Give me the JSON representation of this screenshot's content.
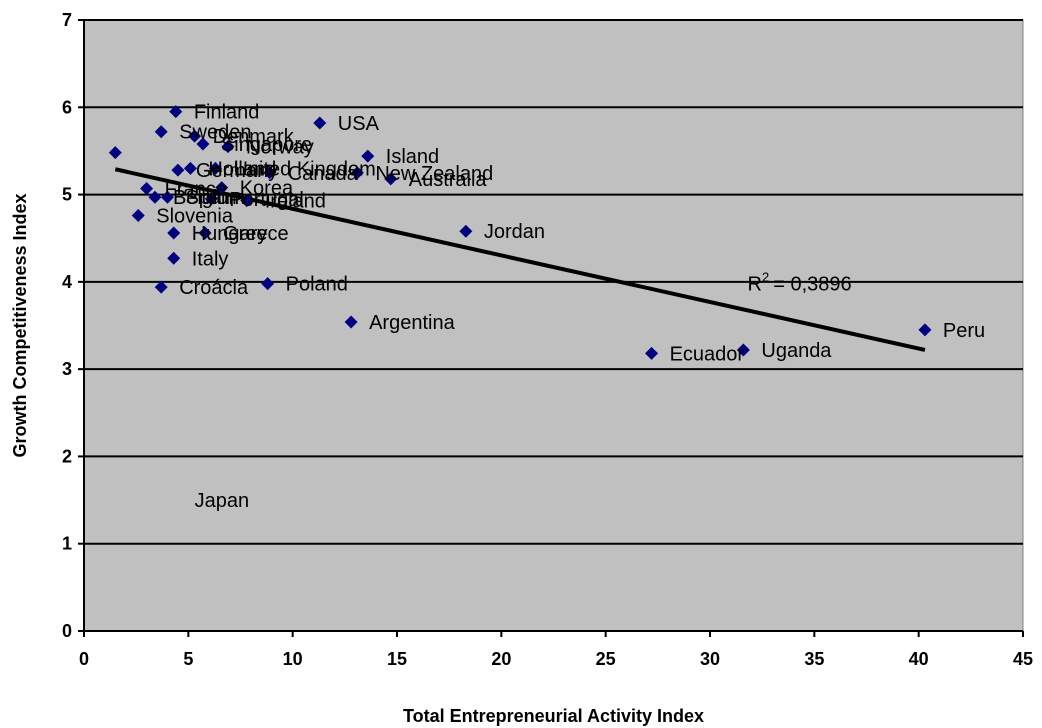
{
  "chart_data": {
    "type": "scatter",
    "title": "",
    "xlabel": "Total Entrepreneurial Activity Index",
    "ylabel": "Growth Competitiveness Index",
    "xlim": [
      0,
      45
    ],
    "ylim": [
      0,
      7
    ],
    "xticks": [
      "0",
      "5",
      "10",
      "15",
      "20",
      "25",
      "30",
      "35",
      "40",
      "45"
    ],
    "yticks": [
      "0",
      "1",
      "2",
      "3",
      "4",
      "5",
      "6",
      "7"
    ],
    "grid": "horizontal",
    "legend": "none",
    "marker_color": "#000080",
    "plot_background": "#c0c0c0",
    "points": [
      {
        "x": 4.4,
        "y": 5.95,
        "label": "Finland"
      },
      {
        "x": 3.7,
        "y": 5.72,
        "label": "Sweden"
      },
      {
        "x": 5.3,
        "y": 5.67,
        "label": "Denmark"
      },
      {
        "x": 5.7,
        "y": 5.58,
        "label": "Singapore"
      },
      {
        "x": 6.9,
        "y": 5.55,
        "label": "Norway"
      },
      {
        "x": 11.3,
        "y": 5.82,
        "label": "USA"
      },
      {
        "x": 13.6,
        "y": 5.44,
        "label": "Island"
      },
      {
        "x": 1.5,
        "y": 5.48,
        "label": ""
      },
      {
        "x": 4.5,
        "y": 5.28,
        "label": "Germany"
      },
      {
        "x": 5.1,
        "y": 5.3,
        "label": "Holland"
      },
      {
        "x": 6.3,
        "y": 5.3,
        "label": "United Kingdom"
      },
      {
        "x": 8.9,
        "y": 5.25,
        "label": "Canada"
      },
      {
        "x": 13.1,
        "y": 5.25,
        "label": "New Zealand"
      },
      {
        "x": 14.7,
        "y": 5.18,
        "label": "Australia"
      },
      {
        "x": 3.0,
        "y": 5.07,
        "label": "France"
      },
      {
        "x": 6.6,
        "y": 5.08,
        "label": "Korea"
      },
      {
        "x": 3.4,
        "y": 4.97,
        "label": "Belgium"
      },
      {
        "x": 4.0,
        "y": 4.97,
        "label": "Spain"
      },
      {
        "x": 6.1,
        "y": 4.95,
        "label": "Portugal"
      },
      {
        "x": 7.8,
        "y": 4.93,
        "label": "Ireland"
      },
      {
        "x": 2.6,
        "y": 4.76,
        "label": "Slovenia"
      },
      {
        "x": 4.3,
        "y": 4.56,
        "label": "Hungary"
      },
      {
        "x": 5.8,
        "y": 4.56,
        "label": "Greece"
      },
      {
        "x": 18.3,
        "y": 4.58,
        "label": "Jordan"
      },
      {
        "x": 4.3,
        "y": 4.27,
        "label": "Italy"
      },
      {
        "x": 3.7,
        "y": 3.94,
        "label": "Croácia"
      },
      {
        "x": 8.8,
        "y": 3.98,
        "label": "Poland"
      },
      {
        "x": 12.8,
        "y": 3.54,
        "label": "Argentina"
      },
      {
        "x": 27.2,
        "y": 3.18,
        "label": "Ecuador"
      },
      {
        "x": 31.6,
        "y": 3.22,
        "label": "Uganda"
      },
      {
        "x": 40.3,
        "y": 3.45,
        "label": "Peru"
      }
    ],
    "stray_labels": [
      {
        "text": "Japan",
        "x": 5.3,
        "y": 1.5
      }
    ],
    "trendline": {
      "type": "linear",
      "x_start": 1.5,
      "y_start": 5.29,
      "x_end": 40.3,
      "y_end": 3.22,
      "r2_prefix": "R",
      "r2_sup": "2",
      "r2_value_text": "= 0,3896",
      "label_x": 31.8,
      "label_y": 3.9
    }
  }
}
